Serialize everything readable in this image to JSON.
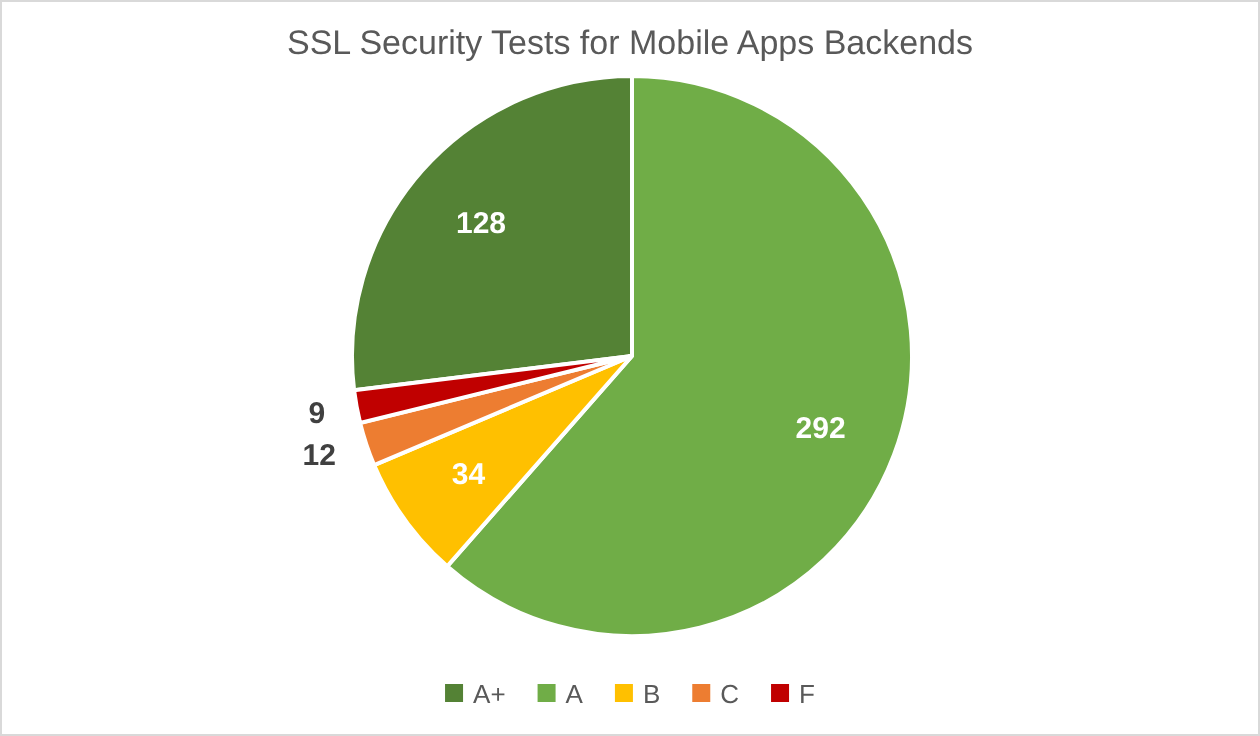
{
  "chart_data": {
    "type": "pie",
    "title": "SSL Security Tests for Mobile Apps Backends",
    "categories": [
      "A+",
      "A",
      "B",
      "C",
      "F"
    ],
    "values": [
      128,
      292,
      34,
      12,
      9
    ],
    "colors": [
      "#548235",
      "#70ad47",
      "#ffc000",
      "#ed7d31",
      "#c00000"
    ],
    "data_labels": true,
    "legend": "bottom"
  }
}
